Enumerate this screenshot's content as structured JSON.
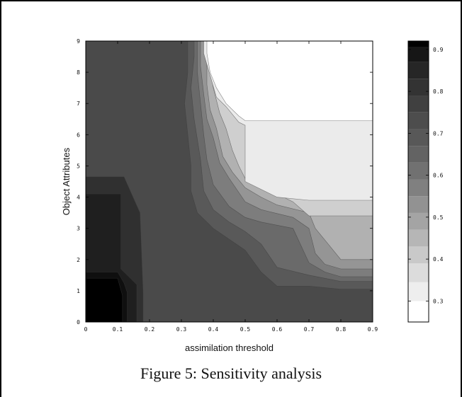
{
  "caption": "Figure 5: Sensitivity analysis",
  "chart_data": {
    "type": "heatmap",
    "style": "filled-contour, grayscale",
    "xlabel": "assimilation threshold",
    "ylabel": "Object Attributes",
    "title": "",
    "xlim": [
      0,
      0.9
    ],
    "ylim": [
      0,
      9
    ],
    "x_ticks": [
      "0",
      "0.1",
      "0.2",
      "0.3",
      "0.4",
      "0.5",
      "0.6",
      "0.7",
      "0.8",
      "0.9"
    ],
    "y_ticks": [
      "0",
      "1",
      "2",
      "3",
      "4",
      "5",
      "6",
      "7",
      "8",
      "9"
    ],
    "colorbar": {
      "range": [
        0.25,
        0.92
      ],
      "ticks": [
        "0.3",
        "0.4",
        "0.5",
        "0.6",
        "0.7",
        "0.8",
        "0.9"
      ],
      "levels": [
        {
          "value": 0.28,
          "color": "#ffffff"
        },
        {
          "value": 0.32,
          "color": "#eeeeee"
        },
        {
          "value": 0.37,
          "color": "#dcdcdc"
        },
        {
          "value": 0.41,
          "color": "#c9c9c9"
        },
        {
          "value": 0.45,
          "color": "#b6b6b6"
        },
        {
          "value": 0.49,
          "color": "#a4a4a4"
        },
        {
          "value": 0.53,
          "color": "#929292"
        },
        {
          "value": 0.57,
          "color": "#808080"
        },
        {
          "value": 0.61,
          "color": "#717171"
        },
        {
          "value": 0.65,
          "color": "#636363"
        },
        {
          "value": 0.69,
          "color": "#585858"
        },
        {
          "value": 0.73,
          "color": "#4d4d4d"
        },
        {
          "value": 0.77,
          "color": "#404040"
        },
        {
          "value": 0.81,
          "color": "#333333"
        },
        {
          "value": 0.85,
          "color": "#262626"
        },
        {
          "value": 0.89,
          "color": "#161616"
        },
        {
          "value": 0.92,
          "color": "#000000"
        }
      ]
    },
    "regions": [
      {
        "name": "base",
        "value": 0.72,
        "color": "#4a4a4a",
        "polygon": [
          [
            0,
            0
          ],
          [
            0.9,
            0
          ],
          [
            0.9,
            9
          ],
          [
            0,
            9
          ]
        ]
      },
      {
        "name": "band-0.68",
        "value": 0.68,
        "color": "#595959",
        "polygon": [
          [
            0.9,
            1.05
          ],
          [
            0.8,
            1.05
          ],
          [
            0.7,
            1.15
          ],
          [
            0.6,
            1.15
          ],
          [
            0.55,
            1.6
          ],
          [
            0.5,
            2.3
          ],
          [
            0.45,
            2.65
          ],
          [
            0.4,
            3.0
          ],
          [
            0.35,
            3.5
          ],
          [
            0.33,
            4.2
          ],
          [
            0.33,
            5.0
          ],
          [
            0.32,
            6.0
          ],
          [
            0.31,
            7.0
          ],
          [
            0.32,
            8.0
          ],
          [
            0.32,
            9
          ],
          [
            0.9,
            9
          ]
        ]
      },
      {
        "name": "band-0.63",
        "value": 0.63,
        "color": "#6a6a6a",
        "polygon": [
          [
            0.9,
            1.3
          ],
          [
            0.8,
            1.3
          ],
          [
            0.7,
            1.5
          ],
          [
            0.6,
            1.75
          ],
          [
            0.55,
            2.5
          ],
          [
            0.5,
            2.9
          ],
          [
            0.45,
            3.2
          ],
          [
            0.4,
            3.6
          ],
          [
            0.37,
            4.2
          ],
          [
            0.36,
            5.2
          ],
          [
            0.34,
            6.5
          ],
          [
            0.33,
            7.5
          ],
          [
            0.34,
            8.5
          ],
          [
            0.34,
            9
          ],
          [
            0.9,
            9
          ]
        ]
      },
      {
        "name": "band-0.58",
        "value": 0.58,
        "color": "#7d7d7d",
        "polygon": [
          [
            0.9,
            1.45
          ],
          [
            0.8,
            1.45
          ],
          [
            0.75,
            1.6
          ],
          [
            0.7,
            1.9
          ],
          [
            0.65,
            3.0
          ],
          [
            0.55,
            3.2
          ],
          [
            0.5,
            3.35
          ],
          [
            0.45,
            3.7
          ],
          [
            0.4,
            4.4
          ],
          [
            0.38,
            5.2
          ],
          [
            0.37,
            6.0
          ],
          [
            0.36,
            7.0
          ],
          [
            0.35,
            8.0
          ],
          [
            0.35,
            9
          ],
          [
            0.9,
            9
          ]
        ]
      },
      {
        "name": "band-0.53",
        "value": 0.53,
        "color": "#959595",
        "polygon": [
          [
            0.9,
            1.7
          ],
          [
            0.8,
            1.7
          ],
          [
            0.75,
            1.85
          ],
          [
            0.72,
            2.2
          ],
          [
            0.7,
            3.0
          ],
          [
            0.65,
            3.35
          ],
          [
            0.55,
            3.6
          ],
          [
            0.5,
            3.85
          ],
          [
            0.45,
            4.6
          ],
          [
            0.42,
            5.1
          ],
          [
            0.4,
            5.9
          ],
          [
            0.38,
            6.5
          ],
          [
            0.37,
            7.3
          ],
          [
            0.36,
            8.2
          ],
          [
            0.36,
            9
          ],
          [
            0.9,
            9
          ]
        ]
      },
      {
        "name": "band-0.47",
        "value": 0.47,
        "color": "#b1b1b1",
        "polygon": [
          [
            0.9,
            2.0
          ],
          [
            0.8,
            2.0
          ],
          [
            0.76,
            2.5
          ],
          [
            0.72,
            3.0
          ],
          [
            0.7,
            3.5
          ],
          [
            0.6,
            3.75
          ],
          [
            0.55,
            4.0
          ],
          [
            0.5,
            4.3
          ],
          [
            0.46,
            4.8
          ],
          [
            0.43,
            5.3
          ],
          [
            0.41,
            6.2
          ],
          [
            0.39,
            6.8
          ],
          [
            0.38,
            7.6
          ],
          [
            0.38,
            9
          ],
          [
            0.9,
            9
          ]
        ]
      },
      {
        "name": "band-0.41",
        "value": 0.41,
        "color": "#cfcfcf",
        "polygon": [
          [
            0.9,
            3.4
          ],
          [
            0.7,
            3.4
          ],
          [
            0.65,
            3.85
          ],
          [
            0.6,
            4.1
          ],
          [
            0.5,
            4.6
          ],
          [
            0.48,
            5.0
          ],
          [
            0.46,
            5.5
          ],
          [
            0.44,
            6.2
          ],
          [
            0.42,
            6.7
          ],
          [
            0.4,
            7.5
          ],
          [
            0.39,
            8.3
          ],
          [
            0.38,
            9
          ],
          [
            0.9,
            9
          ]
        ]
      },
      {
        "name": "band-0.33",
        "value": 0.33,
        "color": "#ebebeb",
        "polygon": [
          [
            0.9,
            3.9
          ],
          [
            0.7,
            3.9
          ],
          [
            0.6,
            4.0
          ],
          [
            0.5,
            4.5
          ],
          [
            0.5,
            6.3
          ],
          [
            0.48,
            6.4
          ],
          [
            0.44,
            6.9
          ],
          [
            0.41,
            7.2
          ],
          [
            0.39,
            7.9
          ],
          [
            0.37,
            8.6
          ],
          [
            0.37,
            9
          ],
          [
            0.9,
            9
          ]
        ]
      },
      {
        "name": "band-0.29",
        "value": 0.29,
        "color": "#ffffff",
        "polygon": [
          [
            0.9,
            6.45
          ],
          [
            0.5,
            6.45
          ],
          [
            0.48,
            6.6
          ],
          [
            0.44,
            7.0
          ],
          [
            0.41,
            7.5
          ],
          [
            0.39,
            8.0
          ],
          [
            0.38,
            8.6
          ],
          [
            0.38,
            9
          ],
          [
            0.9,
            9
          ]
        ]
      },
      {
        "name": "dark-0.80",
        "value": 0.8,
        "color": "#303030",
        "polygon": [
          [
            0.18,
            0
          ],
          [
            0.18,
            0.9
          ],
          [
            0.17,
            3.5
          ],
          [
            0.12,
            4.65
          ],
          [
            0,
            4.65
          ],
          [
            0,
            0
          ]
        ]
      },
      {
        "name": "dark-0.86",
        "value": 0.86,
        "color": "#1f1f1f",
        "polygon": [
          [
            0.16,
            0
          ],
          [
            0.16,
            1.2
          ],
          [
            0.11,
            1.7
          ],
          [
            0.11,
            4.1
          ],
          [
            0,
            4.1
          ],
          [
            0,
            0
          ]
        ]
      },
      {
        "name": "dark-0.90",
        "value": 0.9,
        "color": "#0f0f0f",
        "polygon": [
          [
            0.13,
            0
          ],
          [
            0.13,
            0.95
          ],
          [
            0.12,
            1.25
          ],
          [
            0.1,
            1.6
          ],
          [
            0,
            1.6
          ],
          [
            0,
            0
          ]
        ]
      },
      {
        "name": "dark-0.92",
        "value": 0.92,
        "color": "#000000",
        "polygon": [
          [
            0.115,
            0
          ],
          [
            0.115,
            0.85
          ],
          [
            0.1,
            1.4
          ],
          [
            0,
            1.4
          ],
          [
            0,
            0
          ]
        ]
      }
    ]
  }
}
